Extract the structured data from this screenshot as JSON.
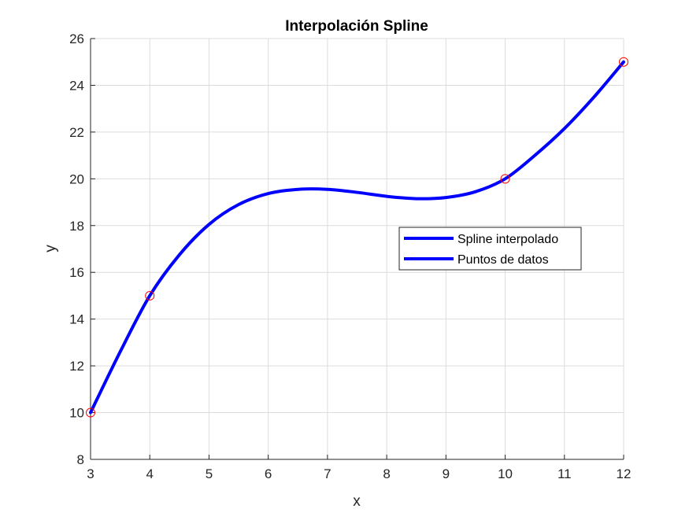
{
  "chart_data": {
    "type": "line",
    "title": "Interpolación Spline",
    "xlabel": "x",
    "ylabel": "y",
    "xlim": [
      3,
      12
    ],
    "ylim": [
      8,
      26
    ],
    "xticks": [
      3,
      4,
      5,
      6,
      7,
      8,
      9,
      10,
      11,
      12
    ],
    "yticks": [
      8,
      10,
      12,
      14,
      16,
      18,
      20,
      22,
      24,
      26
    ],
    "grid": true,
    "legend_position": "center-right",
    "series": [
      {
        "name": "Spline interpolado",
        "style": "line",
        "color": "#0000ff",
        "x": [
          3,
          3.5,
          4,
          4.5,
          5,
          5.5,
          6,
          6.5,
          7,
          7.5,
          8,
          8.5,
          9,
          9.5,
          10,
          10.5,
          11,
          11.5,
          12
        ],
        "y": [
          10,
          12.6,
          15,
          16.75,
          18.05,
          18.9,
          19.37,
          19.55,
          19.55,
          19.42,
          19.25,
          19.15,
          19.2,
          19.45,
          20,
          21,
          22.15,
          23.5,
          25
        ]
      },
      {
        "name": "Puntos de datos",
        "style": "markers",
        "color": "#ff0000",
        "x": [
          3,
          4,
          10,
          12
        ],
        "y": [
          10,
          15,
          20,
          25
        ]
      }
    ]
  }
}
